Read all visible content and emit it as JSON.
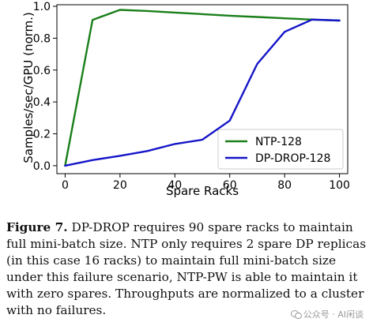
{
  "chart_data": {
    "type": "line",
    "xlabel": "Spare Racks",
    "ylabel": "Samples/sec/GPU (norm.)",
    "xlim": [
      -3,
      103
    ],
    "ylim": [
      -0.05,
      1.01
    ],
    "xticks": [
      0,
      20,
      40,
      60,
      80,
      100
    ],
    "yticks": [
      0.0,
      0.2,
      0.4,
      0.6,
      0.8,
      1.0
    ],
    "xtick_labels": [
      "0",
      "20",
      "40",
      "60",
      "80",
      "100"
    ],
    "ytick_labels": [
      "0.0",
      "0.2",
      "0.4",
      "0.6",
      "0.8",
      "1.0"
    ],
    "legend_position": "bottom-right",
    "series": [
      {
        "name": "NTP-128",
        "color": "#1a7f1a",
        "x": [
          0,
          10,
          20,
          30,
          40,
          50,
          60,
          70,
          80,
          90,
          100
        ],
        "y": [
          0.0,
          0.915,
          0.978,
          0.971,
          0.961,
          0.951,
          0.941,
          0.933,
          0.925,
          0.917,
          0.911
        ]
      },
      {
        "name": "DP-DROP-128",
        "color": "#1515c9",
        "x": [
          0,
          10,
          20,
          30,
          40,
          50,
          60,
          70,
          80,
          90,
          100
        ],
        "y": [
          0.0,
          0.035,
          0.062,
          0.092,
          0.136,
          0.163,
          0.283,
          0.638,
          0.84,
          0.917,
          0.911
        ]
      }
    ]
  },
  "caption": {
    "label": "Figure 7.",
    "text": " DP-DROP requires 90 spare racks to maintain full mini-batch size. NTP only requires 2 spare DP replicas (in this case 16 racks) to maintain full mini-batch size under this failure scenario, NTP-PW is able to maintain it with zero spares. Throughputs are normalized to a cluster with no failures."
  },
  "watermark": {
    "text": "公众号 · AI闲谈"
  }
}
